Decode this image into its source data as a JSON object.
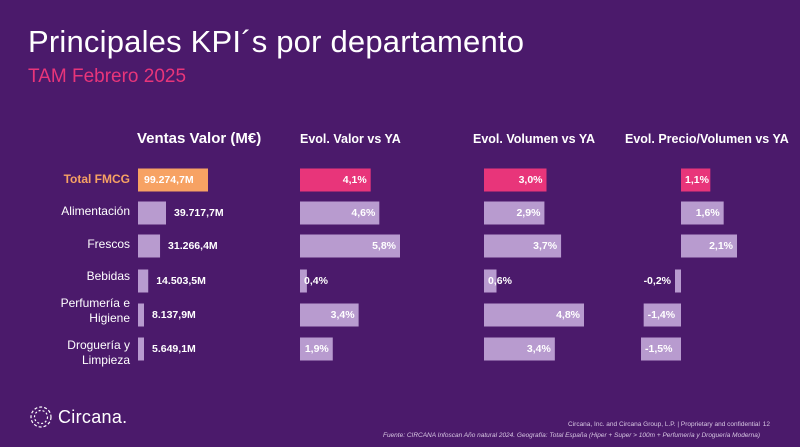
{
  "title": "Principales KPI´s por departamento",
  "subtitle": "TAM Febrero 2025",
  "colors": {
    "background": "#4b1a6b",
    "highlight_orange": "#f7a263",
    "highlight_pink": "#e8357a",
    "bar_lilac": "#b89bcf"
  },
  "chart_data": [
    {
      "type": "bar",
      "title": "Ventas Valor (M€)",
      "categories": [
        "Total FMCG",
        "Alimentación",
        "Frescos",
        "Bebidas",
        "Perfumería e Higiene",
        "Droguería y Limpieza"
      ],
      "values": [
        99274.7,
        39717.7,
        31266.4,
        14503.5,
        8137.9,
        5649.1
      ],
      "labels": [
        "99.274,7M",
        "39.717,7M",
        "31.266,4M",
        "14.503,5M",
        "8.137,9M",
        "5.649,1M"
      ]
    },
    {
      "type": "bar",
      "title": "Evol. Valor vs YA",
      "categories": [
        "Total FMCG",
        "Alimentación",
        "Frescos",
        "Bebidas",
        "Perfumería e Higiene",
        "Droguería y Limpieza"
      ],
      "values": [
        4.1,
        4.6,
        5.8,
        0.4,
        3.4,
        1.9
      ],
      "labels": [
        "4,1%",
        "4,6%",
        "5,8%",
        "0,4%",
        "3,4%",
        "1,9%"
      ]
    },
    {
      "type": "bar",
      "title": "Evol. Volumen vs YA",
      "categories": [
        "Total FMCG",
        "Alimentación",
        "Frescos",
        "Bebidas",
        "Perfumería e Higiene",
        "Droguería y Limpieza"
      ],
      "values": [
        3.0,
        2.9,
        3.7,
        0.6,
        4.8,
        3.4
      ],
      "labels": [
        "3,0%",
        "2,9%",
        "3,7%",
        "0,6%",
        "4,8%",
        "3,4%"
      ]
    },
    {
      "type": "bar",
      "title": "Evol. Precio/Volumen vs YA",
      "categories": [
        "Total FMCG",
        "Alimentación",
        "Frescos",
        "Bebidas",
        "Perfumería e Higiene",
        "Droguería y Limpieza"
      ],
      "values": [
        1.1,
        1.6,
        2.1,
        -0.2,
        -1.4,
        -1.5
      ],
      "labels": [
        "1,1%",
        "1,6%",
        "2,1%",
        "-0,2%",
        "-1,4%",
        "-1,5%"
      ]
    }
  ],
  "row_labels": [
    {
      "line1": "Total FMCG",
      "line2": ""
    },
    {
      "line1": "Alimentación",
      "line2": ""
    },
    {
      "line1": "Frescos",
      "line2": ""
    },
    {
      "line1": "Bebidas",
      "line2": ""
    },
    {
      "line1": "Perfumería e",
      "line2": "Higiene"
    },
    {
      "line1": "Droguería y",
      "line2": "Limpieza"
    }
  ],
  "footer": {
    "logo": "Circana.",
    "legal": "Circana, Inc. and Circana Group, L.P. | Proprietary and confidential",
    "page": "12",
    "source": "Fuente: CIRCANA Infoscan Año natural 2024. Geografía: Total España (Hiper + Super > 100m + Perfumería y Droguería Moderna)"
  }
}
